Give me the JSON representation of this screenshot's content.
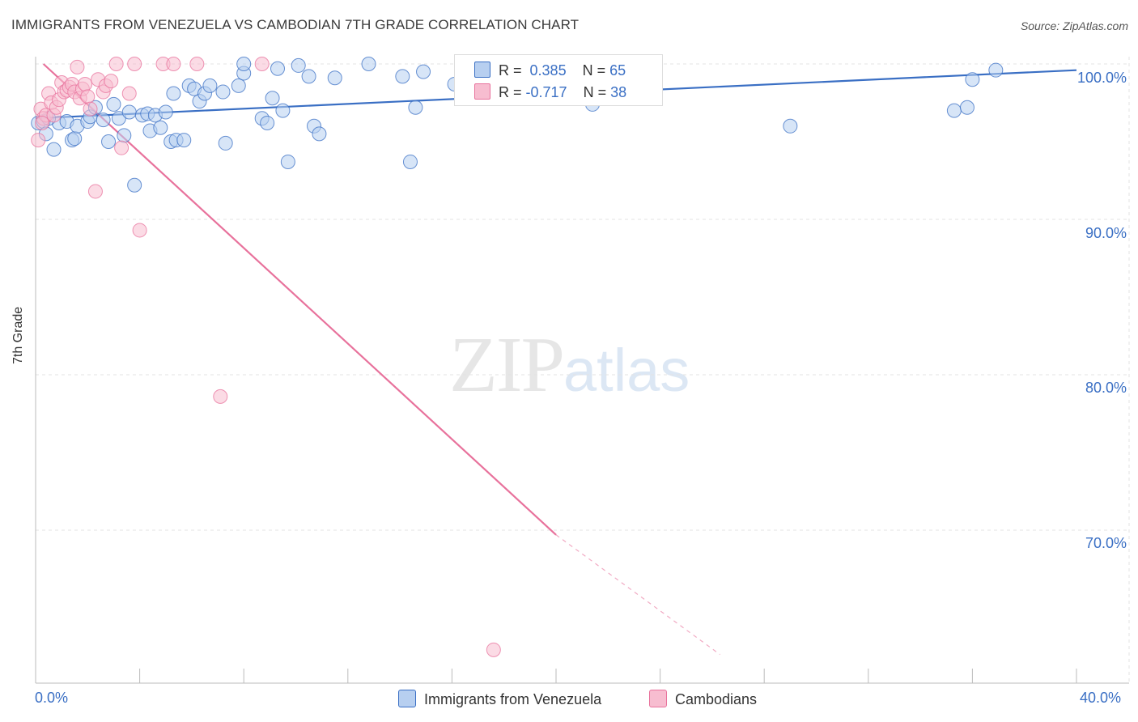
{
  "title": "IMMIGRANTS FROM VENEZUELA VS CAMBODIAN 7TH GRADE CORRELATION CHART",
  "source": "Source: ZipAtlas.com",
  "watermark": {
    "zip": "ZIP",
    "atlas": "atlas"
  },
  "colors": {
    "blue": "#3a6fc4",
    "blue_fill": "#b7cff0",
    "pink": "#e8729c",
    "pink_fill": "#f7bdd0"
  },
  "legend": {
    "r_label": "R =",
    "n_label": "N =",
    "rows": [
      {
        "r": "0.385",
        "n": "65"
      },
      {
        "r": "-0.717",
        "n": "38"
      }
    ]
  },
  "chart_data": {
    "type": "scatter",
    "title": "IMMIGRANTS FROM VENEZUELA VS CAMBODIAN 7TH GRADE CORRELATION CHART",
    "xlabel": "",
    "ylabel": "7th Grade",
    "xlim": [
      0,
      40
    ],
    "ylim": [
      62,
      100
    ],
    "x_tick_labels": [
      "0.0%",
      "40.0%"
    ],
    "y_ticks": [
      {
        "value": 100,
        "label": "100.0%"
      },
      {
        "value": 90,
        "label": "90.0%"
      },
      {
        "value": 80,
        "label": "80.0%"
      },
      {
        "value": 70,
        "label": "70.0%"
      }
    ],
    "grid": true,
    "legend_position": "bottom",
    "series": [
      {
        "name": "Immigrants from Venezuela",
        "color": "#3a6fc4",
        "trend": {
          "x0": 0,
          "y0": 96.5,
          "x1": 40,
          "y1": 99.6
        },
        "points": [
          [
            0.1,
            96.2
          ],
          [
            0.3,
            96.3
          ],
          [
            0.4,
            95.5
          ],
          [
            0.7,
            94.5
          ],
          [
            0.9,
            96.2
          ],
          [
            1.2,
            96.3
          ],
          [
            1.4,
            95.1
          ],
          [
            1.5,
            95.2
          ],
          [
            1.6,
            96.0
          ],
          [
            2.0,
            96.3
          ],
          [
            2.1,
            96.6
          ],
          [
            2.3,
            97.2
          ],
          [
            2.6,
            96.4
          ],
          [
            2.8,
            95.0
          ],
          [
            3.0,
            97.4
          ],
          [
            3.2,
            96.5
          ],
          [
            3.4,
            95.4
          ],
          [
            3.6,
            96.9
          ],
          [
            3.8,
            92.2
          ],
          [
            4.1,
            96.7
          ],
          [
            4.3,
            96.8
          ],
          [
            4.4,
            95.7
          ],
          [
            4.6,
            96.7
          ],
          [
            4.8,
            95.9
          ],
          [
            5.0,
            96.9
          ],
          [
            5.2,
            95.0
          ],
          [
            5.3,
            98.1
          ],
          [
            5.4,
            95.1
          ],
          [
            5.7,
            95.1
          ],
          [
            5.9,
            98.6
          ],
          [
            6.1,
            98.4
          ],
          [
            6.3,
            97.6
          ],
          [
            6.5,
            98.1
          ],
          [
            6.7,
            98.6
          ],
          [
            7.2,
            98.2
          ],
          [
            7.3,
            94.9
          ],
          [
            7.8,
            98.6
          ],
          [
            8.0,
            99.4
          ],
          [
            8.0,
            100.0
          ],
          [
            8.7,
            96.5
          ],
          [
            8.9,
            96.2
          ],
          [
            9.1,
            97.8
          ],
          [
            9.3,
            99.7
          ],
          [
            9.5,
            97.0
          ],
          [
            9.7,
            93.7
          ],
          [
            10.1,
            99.9
          ],
          [
            10.5,
            99.2
          ],
          [
            10.7,
            96.0
          ],
          [
            10.9,
            95.5
          ],
          [
            11.5,
            99.1
          ],
          [
            12.8,
            100.0
          ],
          [
            14.1,
            99.2
          ],
          [
            14.4,
            93.7
          ],
          [
            14.6,
            97.2
          ],
          [
            14.9,
            99.5
          ],
          [
            16.1,
            98.7
          ],
          [
            17.2,
            100.0
          ],
          [
            21.4,
            97.4
          ],
          [
            22.2,
            100.0
          ],
          [
            29.0,
            96.0
          ],
          [
            35.3,
            97.0
          ],
          [
            35.8,
            97.2
          ],
          [
            36.0,
            99.0
          ],
          [
            36.9,
            99.6
          ],
          [
            0.5,
            96.5
          ]
        ]
      },
      {
        "name": "Cambodians",
        "color": "#e8729c",
        "trend": {
          "x0": 0.3,
          "y0": 100.0,
          "x1": 20.0,
          "y1": 69.7,
          "dash_x1": 26.3,
          "dash_y1": 62.0
        },
        "points": [
          [
            0.1,
            95.1
          ],
          [
            0.2,
            97.1
          ],
          [
            0.3,
            96.5
          ],
          [
            0.4,
            96.7
          ],
          [
            0.5,
            98.1
          ],
          [
            0.6,
            97.5
          ],
          [
            0.7,
            96.7
          ],
          [
            0.8,
            97.2
          ],
          [
            0.9,
            97.7
          ],
          [
            1.0,
            98.8
          ],
          [
            1.1,
            98.2
          ],
          [
            1.2,
            98.3
          ],
          [
            1.3,
            98.5
          ],
          [
            1.4,
            98.7
          ],
          [
            1.5,
            98.2
          ],
          [
            1.6,
            99.8
          ],
          [
            1.7,
            97.8
          ],
          [
            1.8,
            98.4
          ],
          [
            1.9,
            98.7
          ],
          [
            2.0,
            97.9
          ],
          [
            2.1,
            97.1
          ],
          [
            2.3,
            91.8
          ],
          [
            2.4,
            99.0
          ],
          [
            2.6,
            98.2
          ],
          [
            2.7,
            98.6
          ],
          [
            2.9,
            98.9
          ],
          [
            3.1,
            100.0
          ],
          [
            3.3,
            94.6
          ],
          [
            3.6,
            98.1
          ],
          [
            3.8,
            100.0
          ],
          [
            4.0,
            89.3
          ],
          [
            4.9,
            100.0
          ],
          [
            5.3,
            100.0
          ],
          [
            6.2,
            100.0
          ],
          [
            7.1,
            78.6
          ],
          [
            8.7,
            100.0
          ],
          [
            17.6,
            62.3
          ],
          [
            0.25,
            96.2
          ]
        ]
      }
    ]
  },
  "bottom_legend": [
    {
      "label": "Immigrants from Venezuela"
    },
    {
      "label": "Cambodians"
    }
  ]
}
